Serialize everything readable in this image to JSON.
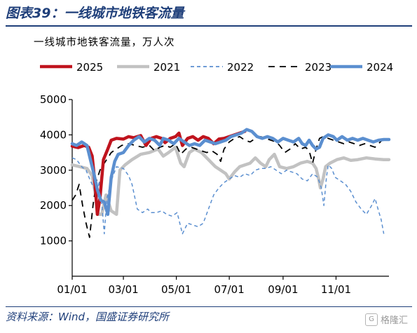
{
  "figure": {
    "title": "图表39：一线城市地铁客流量",
    "subtitle": "一线城市地铁客流量，万人次",
    "source": "资料来源：Wind，国盛证券研究所",
    "watermark": "格隆汇"
  },
  "chart_data": {
    "type": "line",
    "title": "一线城市地铁客流量，万人次",
    "xlabel": "",
    "ylabel": "",
    "x_unit": "day of year",
    "xlim": [
      1,
      366
    ],
    "ylim": [
      0,
      5000
    ],
    "x_ticks": [
      {
        "label": "01/01",
        "day": 1
      },
      {
        "label": "03/01",
        "day": 60
      },
      {
        "label": "05/01",
        "day": 121
      },
      {
        "label": "07/01",
        "day": 182
      },
      {
        "label": "09/01",
        "day": 244
      },
      {
        "label": "11/01",
        "day": 305
      }
    ],
    "y_ticks": [
      1000,
      2000,
      3000,
      4000,
      5000
    ],
    "grid": false,
    "legend_position": "top",
    "series": [
      {
        "name": "2025",
        "color": "#c0141e",
        "style": "solid",
        "width": 4.5,
        "points": [
          [
            1,
            3680
          ],
          [
            8,
            3640
          ],
          [
            15,
            3700
          ],
          [
            20,
            3650
          ],
          [
            24,
            3400
          ],
          [
            27,
            2700
          ],
          [
            30,
            1750
          ],
          [
            33,
            2200
          ],
          [
            37,
            3300
          ],
          [
            42,
            3600
          ],
          [
            46,
            3850
          ],
          [
            52,
            3900
          ],
          [
            60,
            3880
          ],
          [
            66,
            3950
          ],
          [
            72,
            3920
          ],
          [
            80,
            3980
          ],
          [
            86,
            3700
          ],
          [
            92,
            3900
          ],
          [
            98,
            3950
          ],
          [
            104,
            3900
          ],
          [
            108,
            3780
          ],
          [
            114,
            3900
          ],
          [
            120,
            3950
          ],
          [
            124,
            4050
          ],
          [
            128,
            3700
          ],
          [
            134,
            3900
          ],
          [
            140,
            3950
          ],
          [
            146,
            3850
          ],
          [
            152,
            3950
          ],
          [
            158,
            3900
          ],
          [
            164,
            3750
          ],
          [
            170,
            3880
          ],
          [
            176,
            3900
          ],
          [
            182,
            3950
          ],
          [
            188,
            4000
          ],
          [
            194,
            4050
          ],
          [
            200,
            4100
          ]
        ]
      },
      {
        "name": "2021",
        "color": "#c2c2c2",
        "style": "solid",
        "width": 4.5,
        "points": [
          [
            1,
            3150
          ],
          [
            10,
            3100
          ],
          [
            18,
            3050
          ],
          [
            24,
            2850
          ],
          [
            28,
            2300
          ],
          [
            31,
            1750
          ],
          [
            35,
            1750
          ],
          [
            40,
            2300
          ],
          [
            46,
            1850
          ],
          [
            52,
            1750
          ],
          [
            56,
            3000
          ],
          [
            62,
            3150
          ],
          [
            70,
            3300
          ],
          [
            80,
            3450
          ],
          [
            90,
            3500
          ],
          [
            100,
            3600
          ],
          [
            106,
            3400
          ],
          [
            112,
            3500
          ],
          [
            120,
            3650
          ],
          [
            126,
            3200
          ],
          [
            130,
            3100
          ],
          [
            136,
            3500
          ],
          [
            142,
            3600
          ],
          [
            150,
            3500
          ],
          [
            158,
            3300
          ],
          [
            166,
            3100
          ],
          [
            172,
            3000
          ],
          [
            178,
            2900
          ],
          [
            182,
            2750
          ],
          [
            188,
            2950
          ],
          [
            194,
            3100
          ],
          [
            200,
            3150
          ],
          [
            206,
            3200
          ],
          [
            212,
            3350
          ],
          [
            218,
            3200
          ],
          [
            224,
            3100
          ],
          [
            228,
            3300
          ],
          [
            234,
            3450
          ],
          [
            240,
            3100
          ],
          [
            248,
            3050
          ],
          [
            256,
            3100
          ],
          [
            264,
            3200
          ],
          [
            272,
            3250
          ],
          [
            278,
            3200
          ],
          [
            282,
            3050
          ],
          [
            285,
            2750
          ],
          [
            287,
            2500
          ],
          [
            290,
            2750
          ],
          [
            293,
            3100
          ],
          [
            298,
            3200
          ],
          [
            306,
            3300
          ],
          [
            314,
            3350
          ],
          [
            322,
            3280
          ],
          [
            330,
            3300
          ],
          [
            340,
            3350
          ],
          [
            350,
            3320
          ],
          [
            360,
            3300
          ],
          [
            366,
            3300
          ]
        ]
      },
      {
        "name": "2022",
        "color": "#5b8fd0",
        "style": "dashed",
        "width": 1.5,
        "points": [
          [
            1,
            3350
          ],
          [
            6,
            3300
          ],
          [
            12,
            3100
          ],
          [
            17,
            3000
          ],
          [
            22,
            2700
          ],
          [
            26,
            2500
          ],
          [
            29,
            2000
          ],
          [
            32,
            2700
          ],
          [
            35,
            2100
          ],
          [
            38,
            1200
          ],
          [
            41,
            2200
          ],
          [
            46,
            2700
          ],
          [
            52,
            3100
          ],
          [
            60,
            3050
          ],
          [
            66,
            2850
          ],
          [
            70,
            2600
          ],
          [
            76,
            1900
          ],
          [
            82,
            1800
          ],
          [
            88,
            1900
          ],
          [
            92,
            1800
          ],
          [
            98,
            1800
          ],
          [
            104,
            1850
          ],
          [
            110,
            1750
          ],
          [
            116,
            1700
          ],
          [
            122,
            1800
          ],
          [
            128,
            1200
          ],
          [
            134,
            1500
          ],
          [
            140,
            1450
          ],
          [
            146,
            1400
          ],
          [
            152,
            1500
          ],
          [
            158,
            1900
          ],
          [
            164,
            2300
          ],
          [
            170,
            2500
          ],
          [
            176,
            2650
          ],
          [
            182,
            2750
          ],
          [
            188,
            2850
          ],
          [
            194,
            2800
          ],
          [
            200,
            2900
          ],
          [
            206,
            2850
          ],
          [
            212,
            3000
          ],
          [
            218,
            3050
          ],
          [
            224,
            3050
          ],
          [
            230,
            3100
          ],
          [
            236,
            3000
          ],
          [
            242,
            2900
          ],
          [
            248,
            3000
          ],
          [
            254,
            2950
          ],
          [
            260,
            2900
          ],
          [
            266,
            2750
          ],
          [
            272,
            2700
          ],
          [
            278,
            2900
          ],
          [
            284,
            2800
          ],
          [
            288,
            2500
          ],
          [
            291,
            2000
          ],
          [
            294,
            2800
          ],
          [
            296,
            3150
          ],
          [
            300,
            3050
          ],
          [
            304,
            2800
          ],
          [
            310,
            2700
          ],
          [
            316,
            2600
          ],
          [
            322,
            2400
          ],
          [
            328,
            2100
          ],
          [
            334,
            1900
          ],
          [
            340,
            1750
          ],
          [
            346,
            2000
          ],
          [
            350,
            2200
          ],
          [
            354,
            1850
          ],
          [
            357,
            1600
          ],
          [
            360,
            1200
          ]
        ]
      },
      {
        "name": "2023",
        "color": "#000000",
        "style": "dashed",
        "width": 1.8,
        "points": [
          [
            1,
            2150
          ],
          [
            5,
            2300
          ],
          [
            9,
            2600
          ],
          [
            13,
            2000
          ],
          [
            17,
            1500
          ],
          [
            21,
            1100
          ],
          [
            25,
            2000
          ],
          [
            29,
            2700
          ],
          [
            33,
            3000
          ],
          [
            38,
            3200
          ],
          [
            42,
            3350
          ],
          [
            46,
            3500
          ],
          [
            52,
            3600
          ],
          [
            58,
            3700
          ],
          [
            66,
            3750
          ],
          [
            74,
            3700
          ],
          [
            82,
            3650
          ],
          [
            90,
            3700
          ],
          [
            96,
            3550
          ],
          [
            102,
            3650
          ],
          [
            108,
            3700
          ],
          [
            114,
            3650
          ],
          [
            120,
            3750
          ],
          [
            126,
            3450
          ],
          [
            132,
            3600
          ],
          [
            138,
            3650
          ],
          [
            144,
            3600
          ],
          [
            150,
            3550
          ],
          [
            156,
            3500
          ],
          [
            162,
            3550
          ],
          [
            168,
            3450
          ],
          [
            172,
            3250
          ],
          [
            176,
            3600
          ],
          [
            182,
            3800
          ],
          [
            188,
            3900
          ],
          [
            194,
            3950
          ],
          [
            200,
            3850
          ],
          [
            206,
            3800
          ],
          [
            212,
            3900
          ],
          [
            218,
            3950
          ],
          [
            224,
            3900
          ],
          [
            230,
            3850
          ],
          [
            236,
            3800
          ],
          [
            240,
            3700
          ],
          [
            246,
            3500
          ],
          [
            252,
            3600
          ],
          [
            258,
            3750
          ],
          [
            264,
            3600
          ],
          [
            270,
            3650
          ],
          [
            274,
            3550
          ],
          [
            278,
            3200
          ],
          [
            282,
            3600
          ],
          [
            286,
            3900
          ],
          [
            290,
            3950
          ],
          [
            296,
            3900
          ],
          [
            302,
            3850
          ],
          [
            308,
            3800
          ],
          [
            314,
            3750
          ],
          [
            320,
            3800
          ],
          [
            326,
            3750
          ],
          [
            332,
            3700
          ],
          [
            338,
            3750
          ],
          [
            344,
            3700
          ],
          [
            350,
            3650
          ],
          [
            356,
            3800
          ],
          [
            360,
            3900
          ]
        ]
      },
      {
        "name": "2024",
        "color": "#5b8fd0",
        "style": "solid",
        "width": 4.5,
        "points": [
          [
            1,
            3750
          ],
          [
            6,
            3700
          ],
          [
            12,
            3800
          ],
          [
            18,
            3700
          ],
          [
            22,
            3300
          ],
          [
            26,
            2900
          ],
          [
            30,
            2450
          ],
          [
            34,
            2150
          ],
          [
            38,
            2100
          ],
          [
            42,
            1750
          ],
          [
            46,
            2800
          ],
          [
            50,
            3250
          ],
          [
            54,
            3450
          ],
          [
            60,
            3500
          ],
          [
            66,
            3700
          ],
          [
            72,
            3850
          ],
          [
            78,
            3950
          ],
          [
            84,
            3800
          ],
          [
            90,
            3900
          ],
          [
            96,
            3850
          ],
          [
            102,
            3700
          ],
          [
            106,
            3900
          ],
          [
            112,
            3850
          ],
          [
            118,
            3750
          ],
          [
            124,
            3900
          ],
          [
            130,
            3800
          ],
          [
            136,
            3700
          ],
          [
            142,
            3750
          ],
          [
            148,
            3700
          ],
          [
            154,
            3850
          ],
          [
            160,
            3800
          ],
          [
            166,
            3750
          ],
          [
            172,
            3800
          ],
          [
            178,
            3850
          ],
          [
            184,
            3950
          ],
          [
            190,
            4000
          ],
          [
            196,
            4050
          ],
          [
            202,
            4150
          ],
          [
            208,
            4100
          ],
          [
            214,
            3950
          ],
          [
            220,
            3900
          ],
          [
            226,
            3950
          ],
          [
            232,
            3900
          ],
          [
            238,
            3800
          ],
          [
            244,
            3900
          ],
          [
            250,
            3850
          ],
          [
            256,
            3800
          ],
          [
            262,
            3900
          ],
          [
            266,
            3750
          ],
          [
            270,
            3700
          ],
          [
            274,
            3850
          ],
          [
            278,
            3700
          ],
          [
            282,
            3600
          ],
          [
            286,
            3650
          ],
          [
            290,
            3900
          ],
          [
            296,
            4000
          ],
          [
            302,
            3950
          ],
          [
            306,
            3850
          ],
          [
            312,
            3950
          ],
          [
            318,
            3850
          ],
          [
            324,
            3900
          ],
          [
            330,
            3850
          ],
          [
            336,
            3900
          ],
          [
            342,
            3850
          ],
          [
            348,
            3800
          ],
          [
            354,
            3850
          ],
          [
            360,
            3870
          ],
          [
            366,
            3870
          ]
        ]
      }
    ]
  }
}
